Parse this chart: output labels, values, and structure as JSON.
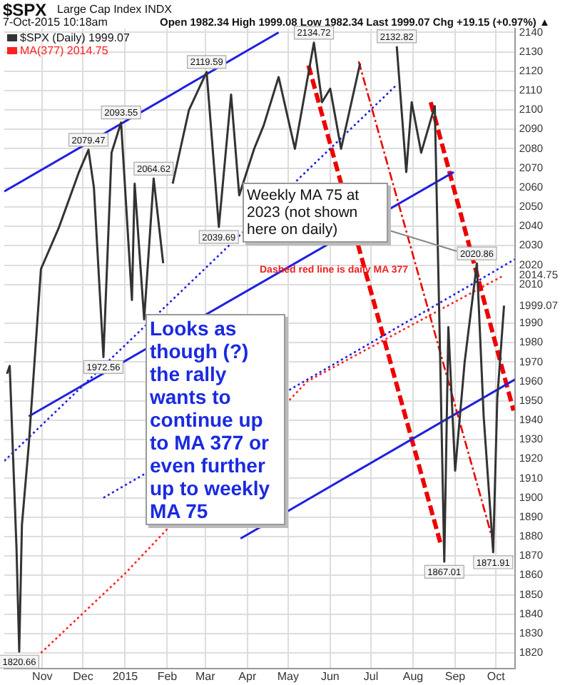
{
  "chart_data": {
    "type": "line",
    "title": "$SPX",
    "subtitle": "Large Cap Index INDX",
    "annotations": [
      "7-Oct-2015 10:18am",
      "Open 1982.34 High 1999.08 Low 1982.34 Last 1999.07 Chg +19.15 (+0.97%) ▲",
      "Weekly MA 75 at 2023 (not shown here on daily)",
      "Dashed red line is daily MA 377",
      "Looks as though (?) the rally wants to continue up to MA 377 or even further up to weekly MA 75",
      {
        "text": "1820.66",
        "x": "2014-10-15",
        "y": 1820.66
      },
      {
        "text": "2079.47",
        "x": "2014-12-05",
        "y": 2079.47
      },
      {
        "text": "1972.56",
        "x": "2014-12-16",
        "y": 1972.56
      },
      {
        "text": "2093.55",
        "x": "2014-12-29",
        "y": 2093.55
      },
      {
        "text": "2064.62",
        "x": "2015-01-22",
        "y": 2064.62
      },
      {
        "text": "2119.59",
        "x": "2015-03-02",
        "y": 2119.59
      },
      {
        "text": "2039.69",
        "x": "2015-03-11",
        "y": 2039.69
      },
      {
        "text": "2134.72",
        "x": "2015-05-20",
        "y": 2134.72
      },
      {
        "text": "2132.82",
        "x": "2015-07-20",
        "y": 2132.82
      },
      {
        "text": "2020.86",
        "x": "2015-09-17",
        "y": 2020.86
      },
      {
        "text": "1867.01",
        "x": "2015-08-24",
        "y": 1867.01
      },
      {
        "text": "1871.91",
        "x": "2015-09-29",
        "y": 1871.91
      }
    ],
    "xlim": [
      "2014-10-04",
      "2015-10-15"
    ],
    "xticks": [
      {
        "value": "2014-11-01",
        "label": "Nov"
      },
      {
        "value": "2014-12-01",
        "label": "Dec"
      },
      {
        "value": "2015-01-01",
        "label": "2015"
      },
      {
        "value": "2015-02-01",
        "label": "Feb"
      },
      {
        "value": "2015-03-01",
        "label": "Mar"
      },
      {
        "value": "2015-04-01",
        "label": "Apr"
      },
      {
        "value": "2015-05-01",
        "label": "May"
      },
      {
        "value": "2015-06-01",
        "label": "Jun"
      },
      {
        "value": "2015-07-01",
        "label": "Jul"
      },
      {
        "value": "2015-08-01",
        "label": "Aug"
      },
      {
        "value": "2015-09-01",
        "label": "Sep"
      },
      {
        "value": "2015-10-01",
        "label": "Oct"
      }
    ],
    "ylim": [
      1812,
      2142
    ],
    "yticks": [
      1820,
      1830,
      1840,
      1850,
      1860,
      1870,
      1880,
      1890,
      1900,
      1910,
      1920,
      1930,
      1940,
      1950,
      1960,
      1970,
      1980,
      1990,
      {
        "value": 1999.07,
        "label": "1999.07"
      },
      2010,
      {
        "value": 2014.75,
        "label": "2014.75"
      },
      2020,
      2030,
      2040,
      2050,
      2060,
      2070,
      2080,
      2090,
      2100,
      2110,
      2120,
      2130,
      2140
    ],
    "grid": true,
    "legend": "top left",
    "marker": "none",
    "series": [
      {
        "name": "$SPX (Daily) 1999.07",
        "color": "#333333",
        "line_style": "solid",
        "x": [
          "2014-10-06",
          "2014-10-08",
          "2014-10-13",
          "2014-10-15",
          "2014-10-17",
          "2014-10-22",
          "2014-10-31",
          "2014-11-13",
          "2014-11-28",
          "2014-12-05",
          "2014-12-09",
          "2014-12-16",
          "2014-12-22",
          "2014-12-29",
          "2015-01-06",
          "2015-01-08",
          "2015-01-15",
          "2015-01-22",
          "2015-01-29",
          "2015-02-02",
          "2015-02-05",
          "2015-02-17",
          "2015-03-02",
          "2015-03-11",
          "2015-03-20",
          "2015-03-26",
          "2015-04-06",
          "2015-04-13",
          "2015-04-24",
          "2015-05-06",
          "2015-05-20",
          "2015-05-26",
          "2015-06-01",
          "2015-06-09",
          "2015-06-23",
          "2015-06-29",
          "2015-07-08",
          "2015-07-20",
          "2015-07-27",
          "2015-07-31",
          "2015-08-07",
          "2015-08-17",
          "2015-08-21",
          "2015-08-24",
          "2015-08-27",
          "2015-09-01",
          "2015-09-08",
          "2015-09-17",
          "2015-09-22",
          "2015-09-29",
          "2015-10-02",
          "2015-10-07"
        ],
        "values": [
          1964,
          1968,
          1874,
          1820.66,
          1886,
          1927,
          2018,
          2039,
          2068,
          2079.47,
          2060,
          1972.56,
          2078,
          2093.55,
          2002,
          2062,
          1992,
          2064.62,
          2021,
          null,
          2062,
          2100,
          2119.59,
          2039.69,
          2108,
          2056,
          2080,
          2092,
          2117,
          2080,
          2134.72,
          2104,
          2111,
          2080,
          2124,
          null,
          null,
          2132.82,
          2068,
          2104,
          2078,
          2102,
          1971,
          1867.01,
          1988,
          1914,
          1970,
          2020.86,
          1942,
          1871.91,
          1951,
          1999.07
        ]
      },
      {
        "name": "MA(377) 2014.75",
        "color": "#ff2020",
        "line_style": "dotted",
        "x": [
          "2014-10-31",
          "2015-01-01",
          "2015-05-15",
          "2015-10-07"
        ],
        "values": [
          1820,
          1861,
          1960,
          2014.75
        ]
      },
      {
        "color": "#2020e0",
        "line_style": "solid",
        "x": [
          "2014-10-04",
          "2015-04-24"
        ],
        "values": [
          2058,
          2140
        ]
      },
      {
        "color": "#2020e0",
        "line_style": "dotted",
        "x": [
          "2014-10-04",
          "2015-07-20"
        ],
        "values": [
          1919,
          2113
        ]
      },
      {
        "color": "#2020e0",
        "line_style": "dotted",
        "x": [
          "2014-12-16",
          "2015-10-15"
        ],
        "values": [
          1900,
          2023
        ]
      },
      {
        "color": "#2020e0",
        "line_style": "solid",
        "x": [
          "2014-10-22",
          "2015-08-31"
        ],
        "values": [
          1942,
          2068
        ]
      },
      {
        "color": "#2020e0",
        "line_style": "solid",
        "x": [
          "2015-03-27",
          "2015-10-15"
        ],
        "values": [
          1879,
          1961
        ]
      },
      {
        "color": "#ee0000",
        "line_style": "dashed",
        "x": [
          "2015-05-16",
          "2015-08-21"
        ],
        "values": [
          2123,
          1877
        ]
      },
      {
        "color": "#ee0000",
        "line_style": "dashdot",
        "x": [
          "2015-06-22",
          "2015-09-28"
        ],
        "values": [
          2125,
          1880
        ]
      },
      {
        "color": "#ee0000",
        "line_style": "dashed",
        "x": [
          "2015-08-14",
          "2015-10-14"
        ],
        "values": [
          2104,
          1945
        ]
      }
    ]
  }
}
